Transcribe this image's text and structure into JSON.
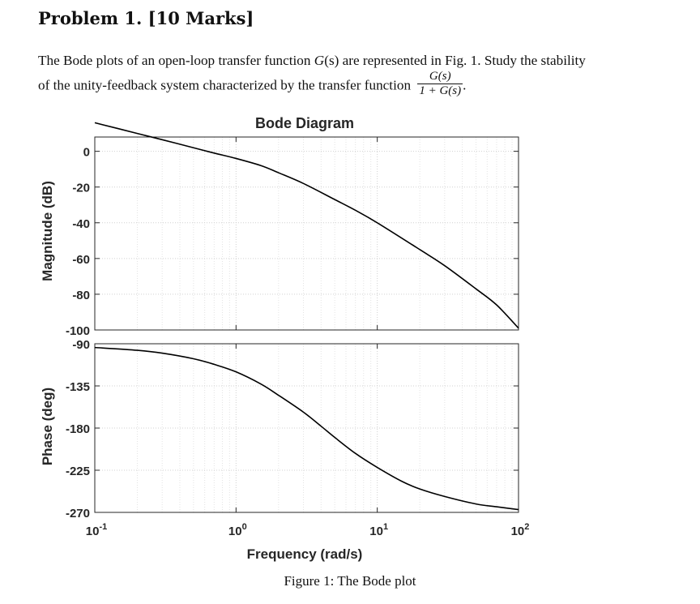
{
  "problem": {
    "title": "Problem 1. [10 Marks]",
    "line1_before": "The Bode plots of an open-loop transfer function ",
    "var_g": "G",
    "var_s": "(s)",
    "line1_after": " are represented in Fig. 1. Study the stability",
    "line2": "of the unity-feedback system characterized by the transfer function",
    "frac_num": "G(s)",
    "frac_den": "1 + G(s)",
    "period": "."
  },
  "chart_data": {
    "type": "line",
    "title": "Bode Diagram",
    "xlabel": "Frequency (rad/s)",
    "x_scale": "log",
    "xlim": [
      0.1,
      100
    ],
    "x_ticks": [
      0.1,
      1,
      10,
      100
    ],
    "x_tick_labels": [
      {
        "base": "10",
        "exp": "-1"
      },
      {
        "base": "10",
        "exp": "0"
      },
      {
        "base": "10",
        "exp": "1"
      },
      {
        "base": "10",
        "exp": "2"
      }
    ],
    "grid": "on",
    "magnitude": {
      "ylabel": "Magnitude (dB)",
      "ylim": [
        -100,
        8
      ],
      "y_ticks": [
        0,
        -20,
        -40,
        -60,
        -80,
        -100
      ],
      "y_tick_labels": [
        "0",
        "-20",
        "-40",
        "-60",
        "-80",
        "-100"
      ],
      "x": [
        0.1,
        0.2,
        0.3,
        0.5,
        0.7,
        1.0,
        1.5,
        2.0,
        3.0,
        5.0,
        7.0,
        10.0,
        20.0,
        30.0,
        50.0,
        70.0,
        100.0
      ],
      "values": [
        16,
        10,
        6.5,
        2,
        -1,
        -4,
        -8,
        -12,
        -18,
        -27,
        -33,
        -40,
        -55,
        -64,
        -77,
        -86,
        -99
      ]
    },
    "phase": {
      "ylabel": "Phase (deg)",
      "ylim": [
        -270,
        -90
      ],
      "y_ticks": [
        -90,
        -135,
        -180,
        -225,
        -270
      ],
      "y_tick_labels": [
        "-90",
        "-135",
        "-180",
        "-225",
        "-270"
      ],
      "x": [
        0.1,
        0.2,
        0.3,
        0.5,
        0.7,
        1.0,
        1.5,
        2.0,
        3.0,
        4.0,
        5.0,
        7.0,
        10.0,
        15.0,
        20.0,
        30.0,
        50.0,
        70.0,
        100.0
      ],
      "values": [
        -94,
        -97,
        -100,
        -106,
        -112,
        -120,
        -133,
        -145,
        -163,
        -178,
        -190,
        -207,
        -222,
        -237,
        -245,
        -253,
        -261,
        -264,
        -267
      ]
    }
  },
  "figure": {
    "caption": "Figure 1: The Bode plot"
  }
}
